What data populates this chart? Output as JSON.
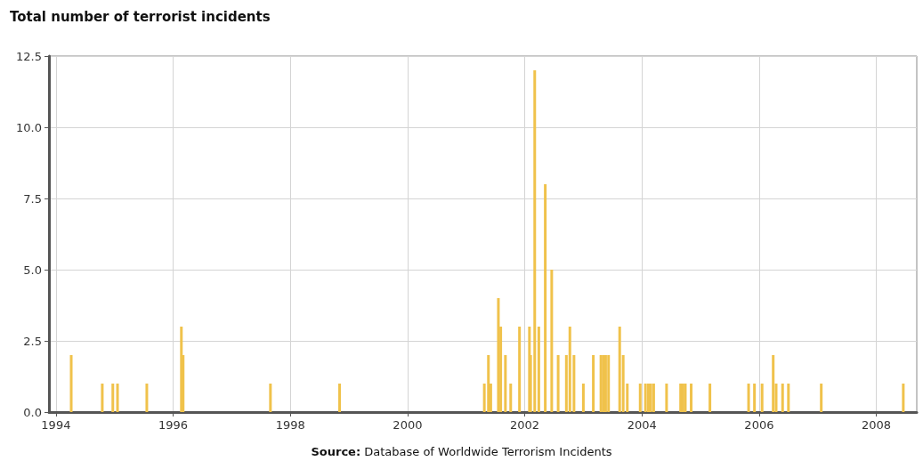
{
  "chart_data": {
    "type": "bar",
    "title": "Total number of terrorist incidents",
    "annotations": [
      "Source: Database of Worldwide Terrorism Incidents"
    ],
    "x": [
      1994.26,
      1994.79,
      1994.97,
      1995.05,
      1995.55,
      1996.14,
      1996.17,
      1997.66,
      1998.84,
      2001.31,
      2001.38,
      2001.42,
      2001.55,
      2001.59,
      2001.67,
      2001.76,
      2001.91,
      2002.08,
      2002.1,
      2002.17,
      2002.24,
      2002.35,
      2002.46,
      2002.57,
      2002.71,
      2002.77,
      2002.84,
      2003.0,
      2003.17,
      2003.3,
      2003.34,
      2003.38,
      2003.43,
      2003.62,
      2003.68,
      2003.75,
      2003.97,
      2004.06,
      2004.11,
      2004.15,
      2004.2,
      2004.42,
      2004.66,
      2004.7,
      2004.74,
      2004.84,
      2005.16,
      2005.82,
      2005.92,
      2006.05,
      2006.24,
      2006.29,
      2006.4,
      2006.5,
      2007.06,
      2008.46
    ],
    "values": [
      2,
      1,
      1,
      1,
      1,
      3,
      2,
      1,
      1,
      1,
      2,
      1,
      4,
      3,
      2,
      1,
      3,
      3,
      2,
      12,
      3,
      8,
      5,
      2,
      2,
      3,
      2,
      1,
      2,
      2,
      2,
      2,
      2,
      3,
      2,
      1,
      1,
      1,
      1,
      1,
      1,
      1,
      1,
      1,
      1,
      1,
      1,
      1,
      1,
      1,
      2,
      1,
      1,
      1,
      1,
      1
    ],
    "color": "#f0c24b",
    "xlim": [
      1993.88,
      2008.69
    ],
    "xticks": [
      1994,
      1996,
      1998,
      2000,
      2002,
      2004,
      2006,
      2008
    ],
    "ylim": [
      0,
      12.5
    ],
    "yticks": [
      {
        "value": 0,
        "label": "0.0"
      },
      {
        "value": 2.5,
        "label": "2.5"
      },
      {
        "value": 5,
        "label": "5.0"
      },
      {
        "value": 7.5,
        "label": "7.5"
      },
      {
        "value": 10,
        "label": "10.0"
      },
      {
        "value": 12.5,
        "label": "12.5"
      }
    ],
    "grid": true
  }
}
